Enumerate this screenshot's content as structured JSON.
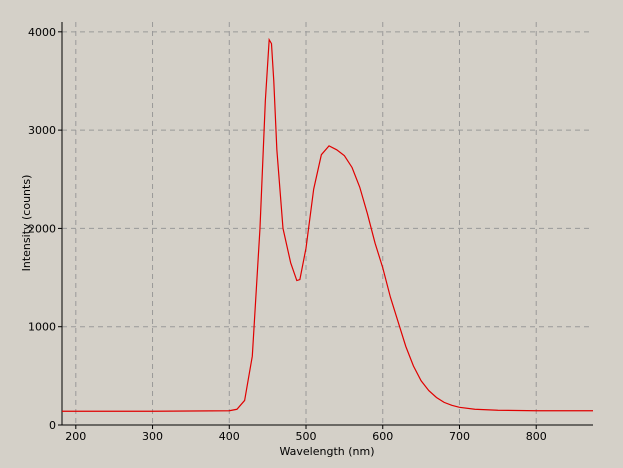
{
  "chart_data": {
    "type": "line",
    "x_label": "Wavelength (nm)",
    "y_label": "Intensity (counts)",
    "x": [
      182,
      300,
      400,
      410,
      420,
      430,
      440,
      447,
      452,
      455,
      458,
      462,
      470,
      480,
      488,
      492,
      500,
      510,
      520,
      530,
      540,
      550,
      560,
      570,
      580,
      590,
      600,
      610,
      620,
      630,
      640,
      650,
      660,
      670,
      680,
      690,
      700,
      720,
      750,
      800,
      874
    ],
    "series": [
      {
        "color": "#e00000",
        "values": [
          140,
          140,
          145,
          160,
          250,
          700,
          2000,
          3300,
          3920,
          3880,
          3500,
          2800,
          2000,
          1650,
          1470,
          1480,
          1800,
          2400,
          2750,
          2840,
          2800,
          2740,
          2620,
          2420,
          2150,
          1850,
          1600,
          1300,
          1050,
          800,
          600,
          450,
          350,
          280,
          230,
          200,
          180,
          160,
          150,
          145,
          145
        ]
      }
    ],
    "xlim": [
      182,
      874
    ],
    "ylim": [
      0,
      4100
    ],
    "xticks": [
      200,
      300,
      400,
      500,
      600,
      700,
      800
    ],
    "yticks": [
      0,
      1000,
      2000,
      3000,
      4000
    ],
    "grid": true
  }
}
